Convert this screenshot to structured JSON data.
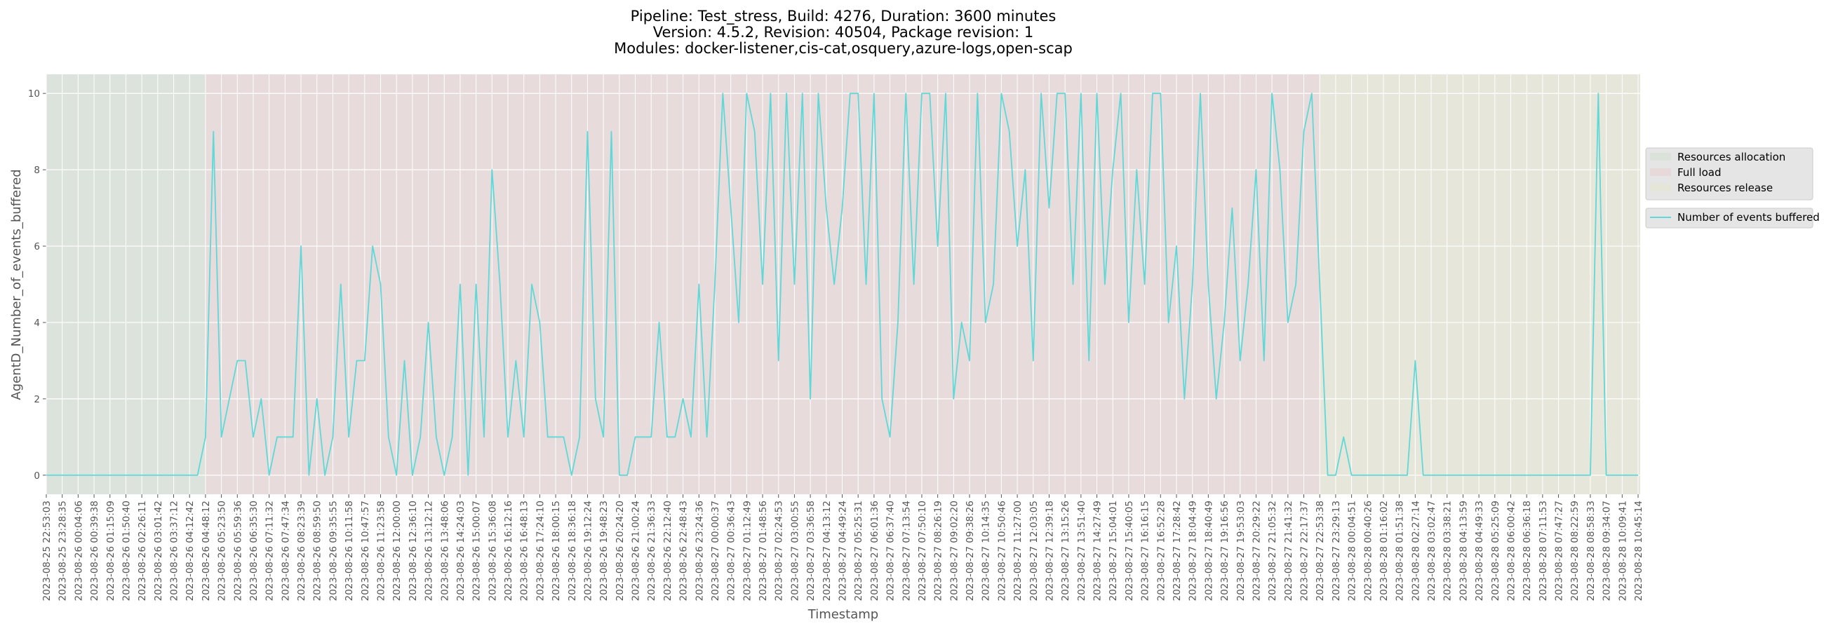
{
  "chart_data": {
    "type": "line",
    "title": [
      "Pipeline: Test_stress, Build: 4276, Duration: 3600 minutes",
      "Version: 4.5.2, Revision: 40504, Package revision: 1",
      "Modules: docker-listener,cis-cat,osquery,azure-logs,open-scap"
    ],
    "xlabel": "Timestamp",
    "ylabel": "AgentD_Number_of_events_buffered",
    "ylim": [
      -0.5,
      10.5
    ],
    "yticks": [
      0,
      2,
      4,
      6,
      8,
      10
    ],
    "grid": true,
    "legend_position": "right",
    "regions": [
      {
        "name": "Resources allocation",
        "color": "#dae2da",
        "start": "2023-08-25 22:53:03",
        "end": "2023-08-26 04:48:12"
      },
      {
        "name": "Full load",
        "color": "#e7d9da",
        "start": "2023-08-26 04:48:12",
        "end": "2023-08-27 22:53:38"
      },
      {
        "name": "Resources release",
        "color": "#e6e6d8",
        "start": "2023-08-27 22:53:38",
        "end": "2023-08-28 10:45:14"
      }
    ],
    "categories": [
      "2023-08-25 22:53:03",
      null,
      "2023-08-25 23:28:35",
      null,
      "2023-08-26 00:04:06",
      null,
      "2023-08-26 00:39:38",
      null,
      "2023-08-26 01:15:09",
      null,
      "2023-08-26 01:50:40",
      null,
      "2023-08-26 02:26:11",
      null,
      "2023-08-26 03:01:42",
      null,
      "2023-08-26 03:37:12",
      null,
      "2023-08-26 04:12:42",
      null,
      "2023-08-26 04:48:12",
      null,
      "2023-08-26 05:23:50",
      null,
      "2023-08-26 05:59:36",
      null,
      "2023-08-26 06:35:30",
      null,
      "2023-08-26 07:11:32",
      null,
      "2023-08-26 07:47:34",
      null,
      "2023-08-26 08:23:39",
      null,
      "2023-08-26 08:59:50",
      null,
      "2023-08-26 09:35:55",
      null,
      "2023-08-26 10:11:58",
      null,
      "2023-08-26 10:47:57",
      null,
      "2023-08-26 11:23:58",
      null,
      "2023-08-26 12:00:00",
      null,
      "2023-08-26 12:36:10",
      null,
      "2023-08-26 13:12:12",
      null,
      "2023-08-26 13:48:06",
      null,
      "2023-08-26 14:24:03",
      null,
      "2023-08-26 15:00:07",
      null,
      "2023-08-26 15:36:08",
      null,
      "2023-08-26 16:12:16",
      null,
      "2023-08-26 16:48:13",
      null,
      "2023-08-26 17:24:10",
      null,
      "2023-08-26 18:00:15",
      null,
      "2023-08-26 18:36:18",
      null,
      "2023-08-26 19:12:24",
      null,
      "2023-08-26 19:48:23",
      null,
      "2023-08-26 20:24:20",
      null,
      "2023-08-26 21:00:24",
      null,
      "2023-08-26 21:36:33",
      null,
      "2023-08-26 22:12:40",
      null,
      "2023-08-26 22:48:43",
      null,
      "2023-08-26 23:24:36",
      null,
      "2023-08-27 00:00:37",
      null,
      "2023-08-27 00:36:43",
      null,
      "2023-08-27 01:12:49",
      null,
      "2023-08-27 01:48:56",
      null,
      "2023-08-27 02:24:53",
      null,
      "2023-08-27 03:00:55",
      null,
      "2023-08-27 03:36:58",
      null,
      "2023-08-27 04:13:12",
      null,
      "2023-08-27 04:49:24",
      null,
      "2023-08-27 05:25:31",
      null,
      "2023-08-27 06:01:36",
      null,
      "2023-08-27 06:37:40",
      null,
      "2023-08-27 07:13:54",
      null,
      "2023-08-27 07:50:10",
      null,
      "2023-08-27 08:26:19",
      null,
      "2023-08-27 09:02:20",
      null,
      "2023-08-27 09:38:26",
      null,
      "2023-08-27 10:14:35",
      null,
      "2023-08-27 10:50:46",
      null,
      "2023-08-27 11:27:00",
      null,
      "2023-08-27 12:03:05",
      null,
      "2023-08-27 12:39:18",
      null,
      "2023-08-27 13:15:26",
      null,
      "2023-08-27 13:51:40",
      null,
      "2023-08-27 14:27:49",
      null,
      "2023-08-27 15:04:01",
      null,
      "2023-08-27 15:40:05",
      null,
      "2023-08-27 16:16:15",
      null,
      "2023-08-27 16:52:28",
      null,
      "2023-08-27 17:28:42",
      null,
      "2023-08-27 18:04:49",
      null,
      "2023-08-27 18:40:49",
      null,
      "2023-08-27 19:16:56",
      null,
      "2023-08-27 19:53:03",
      null,
      "2023-08-27 20:29:22",
      null,
      "2023-08-27 21:05:32",
      null,
      "2023-08-27 21:41:32",
      null,
      "2023-08-27 22:17:37",
      null,
      "2023-08-27 22:53:38",
      null,
      "2023-08-27 23:29:13",
      null,
      "2023-08-28 00:04:51",
      null,
      "2023-08-28 00:40:26",
      null,
      "2023-08-28 01:16:02",
      null,
      "2023-08-28 01:51:38",
      null,
      "2023-08-28 02:27:14",
      null,
      "2023-08-28 03:02:47",
      null,
      "2023-08-28 03:38:21",
      null,
      "2023-08-28 04:13:59",
      null,
      "2023-08-28 04:49:33",
      null,
      "2023-08-28 05:25:09",
      null,
      "2023-08-28 06:00:42",
      null,
      "2023-08-28 06:36:18",
      null,
      "2023-08-28 07:11:53",
      null,
      "2023-08-28 07:47:27",
      null,
      "2023-08-28 08:22:59",
      null,
      "2023-08-28 08:58:33",
      null,
      "2023-08-28 09:34:07",
      null,
      "2023-08-28 10:09:41",
      null,
      "2023-08-28 10:45:14"
    ],
    "series": [
      {
        "name": "Number of events buffered",
        "color": "#5fd8d8",
        "values": [
          0,
          0,
          0,
          0,
          0,
          0,
          0,
          0,
          0,
          0,
          0,
          0,
          0,
          0,
          0,
          0,
          0,
          0,
          0,
          0,
          1,
          9,
          1,
          2,
          3,
          3,
          1,
          2,
          0,
          1,
          1,
          1,
          6,
          0,
          2,
          0,
          1,
          5,
          1,
          3,
          3,
          6,
          5,
          1,
          0,
          3,
          0,
          1,
          4,
          1,
          0,
          1,
          5,
          0,
          5,
          1,
          8,
          5,
          1,
          3,
          1,
          5,
          4,
          1,
          1,
          1,
          0,
          1,
          9,
          2,
          1,
          9,
          0,
          0,
          1,
          1,
          1,
          4,
          1,
          1,
          2,
          1,
          5,
          1,
          5,
          10,
          7,
          4,
          10,
          9,
          5,
          10,
          3,
          10,
          5,
          10,
          2,
          10,
          7,
          5,
          7,
          10,
          10,
          5,
          10,
          2,
          1,
          4,
          10,
          5,
          10,
          10,
          6,
          10,
          2,
          4,
          3,
          10,
          4,
          5,
          10,
          9,
          6,
          8,
          3,
          10,
          7,
          10,
          10,
          5,
          10,
          3,
          10,
          5,
          8,
          10,
          4,
          8,
          5,
          10,
          10,
          4,
          6,
          2,
          5,
          10,
          5,
          2,
          4,
          7,
          3,
          5,
          8,
          3,
          10,
          8,
          4,
          5,
          9,
          10,
          5,
          0,
          0,
          1,
          0,
          0,
          0,
          0,
          0,
          0,
          0,
          0,
          3,
          0,
          0,
          0,
          0,
          0,
          0,
          0,
          0,
          0,
          0,
          0,
          0,
          0,
          0,
          0,
          0,
          0,
          0,
          0,
          0,
          0,
          0,
          10,
          0,
          0,
          0,
          0,
          0
        ]
      }
    ]
  }
}
